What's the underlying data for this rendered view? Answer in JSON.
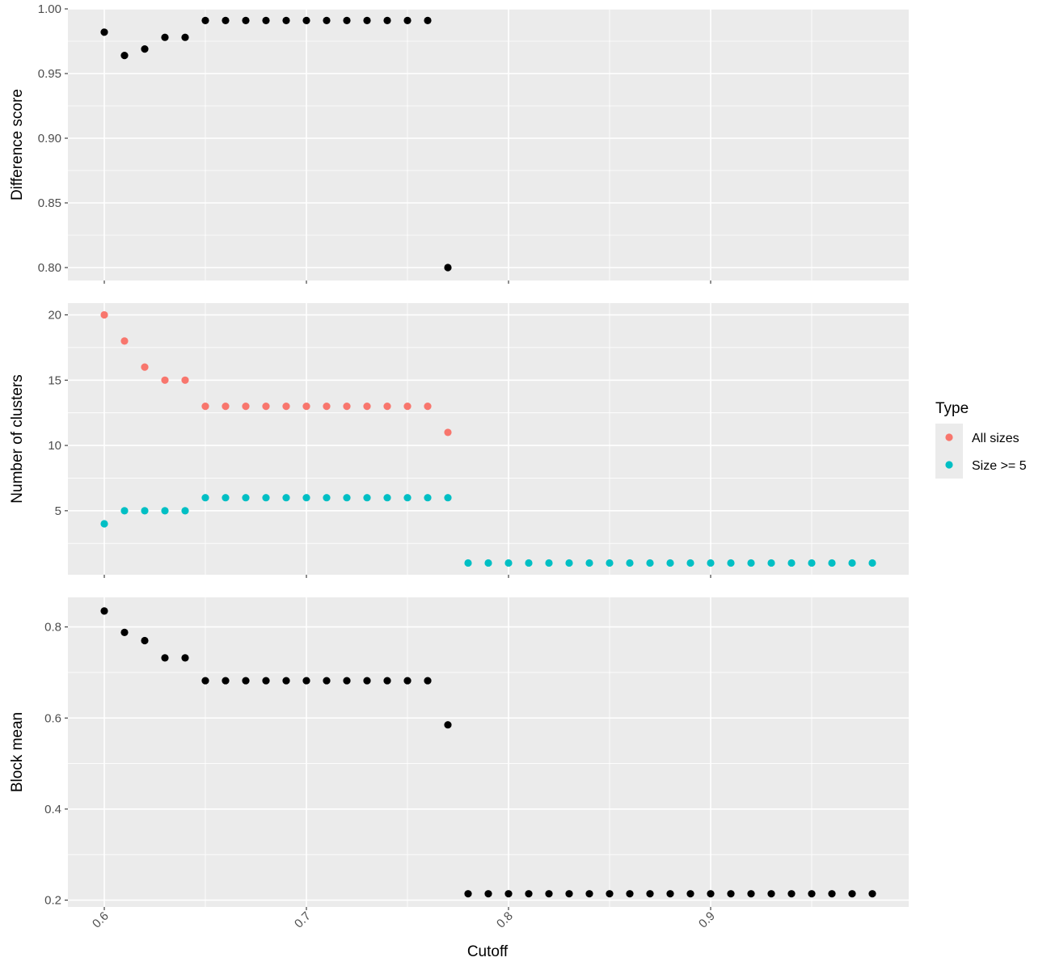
{
  "chart_data": {
    "type": "scatter",
    "xlabel": "Cutoff",
    "xlim": [
      0.582,
      0.998
    ],
    "x_ticks": [
      0.6,
      0.7,
      0.8,
      0.9
    ],
    "x_tick_labels": [
      "0.6",
      "0.7",
      "0.8",
      "0.9"
    ],
    "grid": true,
    "legend": {
      "title": "Type",
      "placement": "right",
      "entries": [
        {
          "label": "All sizes",
          "color": "#F8766D"
        },
        {
          "label": "Size >= 5",
          "color": "#00BFC4"
        }
      ]
    },
    "panels": [
      {
        "ylabel": "Difference score",
        "ylim": [
          0.79,
          1.0
        ],
        "y_ticks": [
          0.8,
          0.85,
          0.9,
          0.95,
          1.0
        ],
        "y_tick_labels": [
          "0.80",
          "0.85",
          "0.90",
          "0.95",
          "1.00"
        ],
        "series": [
          {
            "color": "#000000",
            "x": [
              0.6,
              0.61,
              0.62,
              0.63,
              0.64,
              0.65,
              0.66,
              0.67,
              0.68,
              0.69,
              0.7,
              0.71,
              0.72,
              0.73,
              0.74,
              0.75,
              0.76,
              0.77
            ],
            "y": [
              0.982,
              0.964,
              0.969,
              0.978,
              0.978,
              0.991,
              0.991,
              0.991,
              0.991,
              0.991,
              0.991,
              0.991,
              0.991,
              0.991,
              0.991,
              0.991,
              0.991,
              0.8
            ]
          }
        ]
      },
      {
        "ylabel": "Number of clusters",
        "ylim": [
          0.1,
          20.9
        ],
        "y_ticks": [
          5,
          10,
          15,
          20
        ],
        "y_tick_labels": [
          "5",
          "10",
          "15",
          "20"
        ],
        "series": [
          {
            "name": "All sizes",
            "color": "#F8766D",
            "x": [
              0.6,
              0.61,
              0.62,
              0.63,
              0.64,
              0.65,
              0.66,
              0.67,
              0.68,
              0.69,
              0.7,
              0.71,
              0.72,
              0.73,
              0.74,
              0.75,
              0.76,
              0.77
            ],
            "y": [
              20,
              18,
              16,
              15,
              15,
              13,
              13,
              13,
              13,
              13,
              13,
              13,
              13,
              13,
              13,
              13,
              13,
              11
            ]
          },
          {
            "name": "Size >= 5",
            "color": "#00BFC4",
            "x": [
              0.6,
              0.61,
              0.62,
              0.63,
              0.64,
              0.65,
              0.66,
              0.67,
              0.68,
              0.69,
              0.7,
              0.71,
              0.72,
              0.73,
              0.74,
              0.75,
              0.76,
              0.77,
              0.78,
              0.79,
              0.8,
              0.81,
              0.82,
              0.83,
              0.84,
              0.85,
              0.86,
              0.87,
              0.88,
              0.89,
              0.9,
              0.91,
              0.92,
              0.93,
              0.94,
              0.95,
              0.96,
              0.97,
              0.98
            ],
            "y": [
              4,
              5,
              5,
              5,
              5,
              6,
              6,
              6,
              6,
              6,
              6,
              6,
              6,
              6,
              6,
              6,
              6,
              6,
              1,
              1,
              1,
              1,
              1,
              1,
              1,
              1,
              1,
              1,
              1,
              1,
              1,
              1,
              1,
              1,
              1,
              1,
              1,
              1,
              1
            ]
          }
        ]
      },
      {
        "ylabel": "Block mean",
        "ylim": [
          0.185,
          0.865
        ],
        "y_ticks": [
          0.2,
          0.4,
          0.6,
          0.8
        ],
        "y_tick_labels": [
          "0.2",
          "0.4",
          "0.6",
          "0.8"
        ],
        "series": [
          {
            "color": "#000000",
            "x": [
              0.6,
              0.61,
              0.62,
              0.63,
              0.64,
              0.65,
              0.66,
              0.67,
              0.68,
              0.69,
              0.7,
              0.71,
              0.72,
              0.73,
              0.74,
              0.75,
              0.76,
              0.77,
              0.78,
              0.79,
              0.8,
              0.81,
              0.82,
              0.83,
              0.84,
              0.85,
              0.86,
              0.87,
              0.88,
              0.89,
              0.9,
              0.91,
              0.92,
              0.93,
              0.94,
              0.95,
              0.96,
              0.97,
              0.98
            ],
            "y": [
              0.835,
              0.788,
              0.77,
              0.732,
              0.732,
              0.682,
              0.682,
              0.682,
              0.682,
              0.682,
              0.682,
              0.682,
              0.682,
              0.682,
              0.682,
              0.682,
              0.682,
              0.585,
              0.214,
              0.214,
              0.214,
              0.214,
              0.214,
              0.214,
              0.214,
              0.214,
              0.214,
              0.214,
              0.214,
              0.214,
              0.214,
              0.214,
              0.214,
              0.214,
              0.214,
              0.214,
              0.214,
              0.214,
              0.214
            ]
          }
        ]
      }
    ]
  }
}
